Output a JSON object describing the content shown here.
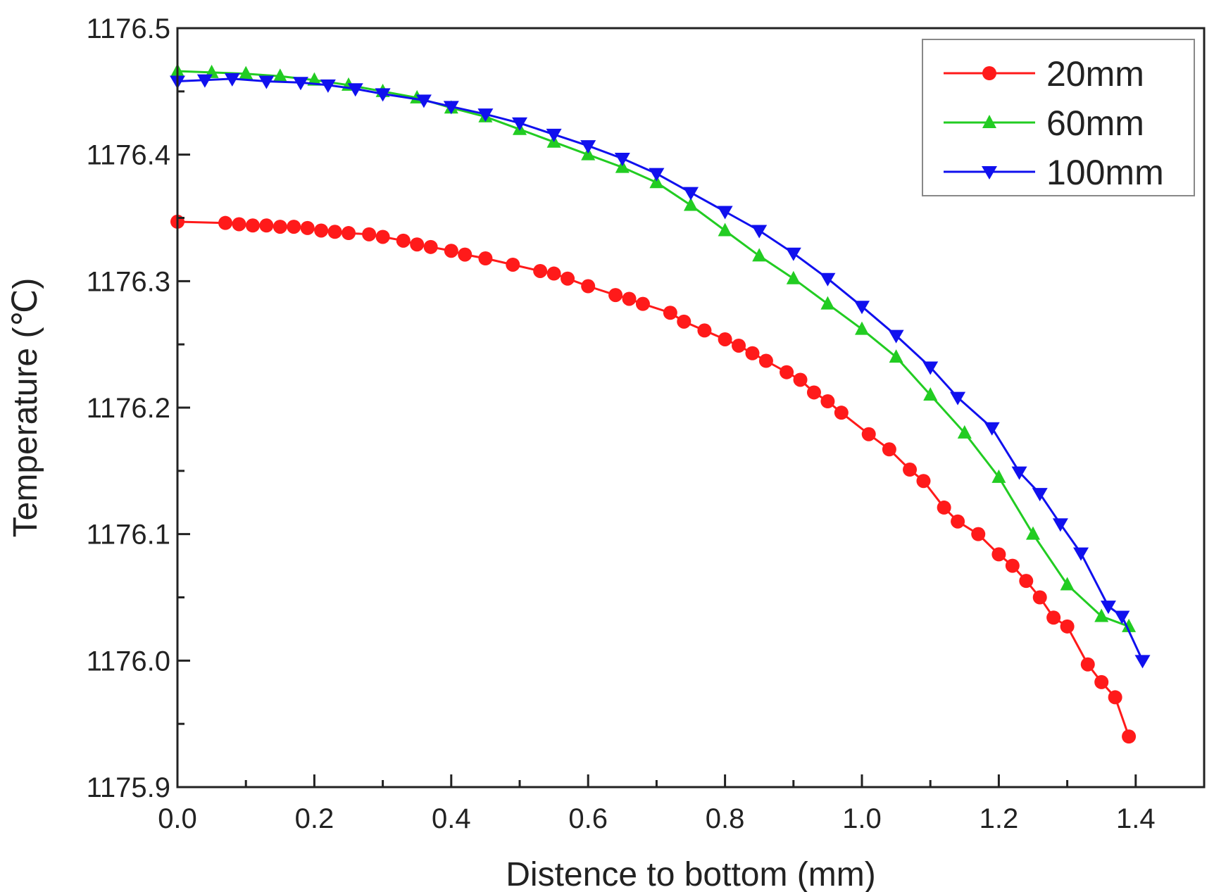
{
  "chart_data": {
    "type": "line",
    "title": "",
    "xlabel": "Distence to bottom (mm)",
    "ylabel": "Temperature (℃)",
    "xlim": [
      0.0,
      1.5
    ],
    "ylim": [
      1175.9,
      1176.5
    ],
    "xticks": [
      0.0,
      0.2,
      0.4,
      0.6,
      0.8,
      1.0,
      1.2,
      1.4
    ],
    "xtick_labels": [
      "0.0",
      "0.2",
      "0.4",
      "0.6",
      "0.8",
      "1.0",
      "1.2",
      "1.4"
    ],
    "yticks": [
      1175.9,
      1176.0,
      1176.1,
      1176.2,
      1176.3,
      1176.4,
      1176.5
    ],
    "ytick_labels": [
      "1175.9",
      "1176.0",
      "1176.1",
      "1176.2",
      "1176.3",
      "1176.4",
      "1176.5"
    ],
    "grid": false,
    "legend_position": "top-right",
    "series": [
      {
        "name": "20mm",
        "color": "#ff1a1a",
        "marker": "circle",
        "x": [
          0.0,
          0.07,
          0.09,
          0.11,
          0.13,
          0.15,
          0.17,
          0.19,
          0.21,
          0.23,
          0.25,
          0.28,
          0.3,
          0.33,
          0.35,
          0.37,
          0.4,
          0.42,
          0.45,
          0.49,
          0.53,
          0.55,
          0.57,
          0.6,
          0.64,
          0.66,
          0.68,
          0.72,
          0.74,
          0.77,
          0.8,
          0.82,
          0.84,
          0.86,
          0.89,
          0.91,
          0.93,
          0.95,
          0.97,
          1.01,
          1.04,
          1.07,
          1.09,
          1.12,
          1.14,
          1.17,
          1.2,
          1.22,
          1.24,
          1.26,
          1.28,
          1.3,
          1.33,
          1.35,
          1.37,
          1.39
        ],
        "y": [
          1176.347,
          1176.346,
          1176.345,
          1176.344,
          1176.344,
          1176.343,
          1176.343,
          1176.342,
          1176.34,
          1176.339,
          1176.338,
          1176.337,
          1176.335,
          1176.332,
          1176.329,
          1176.327,
          1176.324,
          1176.321,
          1176.318,
          1176.313,
          1176.308,
          1176.306,
          1176.302,
          1176.296,
          1176.289,
          1176.286,
          1176.282,
          1176.275,
          1176.268,
          1176.261,
          1176.254,
          1176.249,
          1176.243,
          1176.237,
          1176.228,
          1176.222,
          1176.212,
          1176.205,
          1176.196,
          1176.179,
          1176.167,
          1176.151,
          1176.142,
          1176.121,
          1176.11,
          1176.1,
          1176.084,
          1176.075,
          1176.063,
          1176.05,
          1176.034,
          1176.027,
          1175.997,
          1175.983,
          1175.971,
          1175.94
        ]
      },
      {
        "name": "60mm",
        "color": "#22cc22",
        "marker": "triangle-up",
        "x": [
          0.0,
          0.05,
          0.1,
          0.15,
          0.2,
          0.25,
          0.3,
          0.35,
          0.4,
          0.45,
          0.5,
          0.55,
          0.6,
          0.65,
          0.7,
          0.75,
          0.8,
          0.85,
          0.9,
          0.95,
          1.0,
          1.05,
          1.1,
          1.15,
          1.2,
          1.25,
          1.3,
          1.35,
          1.39
        ],
        "y": [
          1176.466,
          1176.465,
          1176.464,
          1176.462,
          1176.459,
          1176.455,
          1176.45,
          1176.445,
          1176.437,
          1176.43,
          1176.42,
          1176.41,
          1176.4,
          1176.39,
          1176.378,
          1176.36,
          1176.34,
          1176.32,
          1176.302,
          1176.282,
          1176.262,
          1176.24,
          1176.21,
          1176.18,
          1176.145,
          1176.1,
          1176.06,
          1176.035,
          1176.027
        ]
      },
      {
        "name": "100mm",
        "color": "#1010ee",
        "marker": "triangle-down",
        "x": [
          0.0,
          0.04,
          0.08,
          0.13,
          0.18,
          0.22,
          0.26,
          0.3,
          0.36,
          0.4,
          0.45,
          0.5,
          0.55,
          0.6,
          0.65,
          0.7,
          0.75,
          0.8,
          0.85,
          0.9,
          0.95,
          1.0,
          1.05,
          1.1,
          1.14,
          1.19,
          1.23,
          1.26,
          1.29,
          1.32,
          1.36,
          1.38,
          1.41
        ],
        "y": [
          1176.458,
          1176.459,
          1176.46,
          1176.458,
          1176.457,
          1176.455,
          1176.452,
          1176.448,
          1176.443,
          1176.438,
          1176.432,
          1176.425,
          1176.416,
          1176.407,
          1176.397,
          1176.385,
          1176.37,
          1176.355,
          1176.34,
          1176.322,
          1176.302,
          1176.28,
          1176.257,
          1176.232,
          1176.208,
          1176.184,
          1176.149,
          1176.132,
          1176.108,
          1176.085,
          1176.043,
          1176.035,
          1176.0
        ]
      }
    ]
  }
}
